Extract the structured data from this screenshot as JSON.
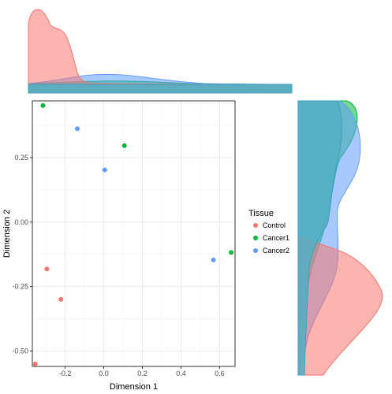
{
  "chart_data": {
    "type": "scatter",
    "xlabel": "Dimension 1",
    "ylabel": "Dimension 2",
    "xlim": [
      -0.37,
      0.68
    ],
    "ylim": [
      -0.56,
      0.47
    ],
    "x_ticks": [
      -0.2,
      0.0,
      0.2,
      0.4,
      0.6
    ],
    "x_tick_labels": [
      "-0.2",
      "0.0",
      "0.2",
      "0.4",
      "0.6"
    ],
    "y_ticks": [
      0.25,
      0.0,
      -0.25,
      -0.5
    ],
    "y_tick_labels": [
      "0.25",
      "0.00",
      "-0.25",
      "-0.50"
    ],
    "grid": true,
    "legend": {
      "title": "Tissue",
      "position": "right",
      "entries": [
        {
          "label": "Control",
          "color": "#F8766D"
        },
        {
          "label": "Cancer1",
          "color": "#00BA38"
        },
        {
          "label": "Cancer2",
          "color": "#619CFF"
        }
      ]
    },
    "series": [
      {
        "name": "Control",
        "color": "#F8766D",
        "points": [
          [
            -0.295,
            -0.182
          ],
          [
            -0.222,
            -0.3
          ],
          [
            -0.355,
            -0.55
          ]
        ]
      },
      {
        "name": "Cancer1",
        "color": "#00BA38",
        "points": [
          [
            -0.315,
            0.452
          ],
          [
            0.107,
            0.296
          ],
          [
            0.66,
            -0.118
          ]
        ]
      },
      {
        "name": "Cancer2",
        "color": "#619CFF",
        "points": [
          [
            -0.137,
            0.362
          ],
          [
            0.005,
            0.202
          ],
          [
            0.568,
            -0.147
          ]
        ]
      }
    ],
    "marginal_density": [
      {
        "axis": "x",
        "series": "Control",
        "color": "#F8766D",
        "level": "high",
        "peak_near": -0.33
      },
      {
        "axis": "x",
        "series": "Cancer1",
        "color": "#00BA38",
        "level": "low",
        "peak_near": 0.1
      },
      {
        "axis": "x",
        "series": "Cancer2",
        "color": "#619CFF",
        "level": "low",
        "peak_near": -0.1
      },
      {
        "axis": "y",
        "series": "Control",
        "color": "#F8766D",
        "level": "medium",
        "peak_near": -0.26
      },
      {
        "axis": "y",
        "series": "Cancer1",
        "color": "#00BA38",
        "level": "low",
        "peak_near": 0.3
      },
      {
        "axis": "y",
        "series": "Cancer2",
        "color": "#619CFF",
        "level": "low",
        "peak_near": 0.3
      }
    ]
  }
}
